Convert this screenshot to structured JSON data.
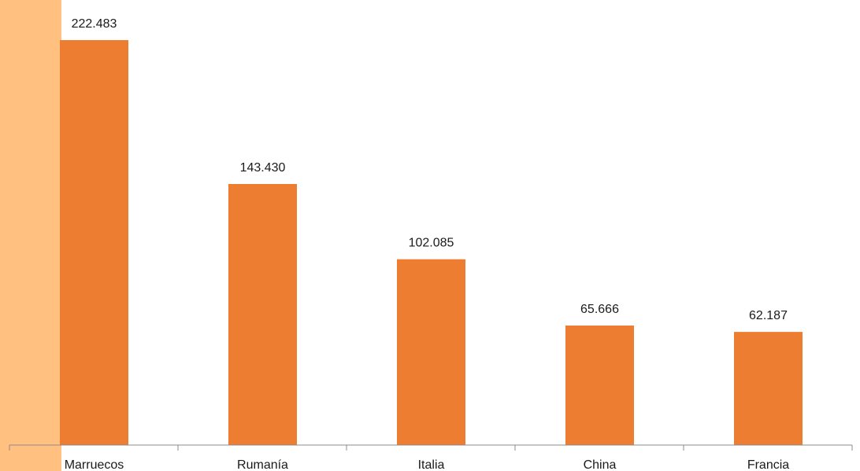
{
  "chart_data": {
    "type": "bar",
    "categories": [
      "Marruecos",
      "Rumanía",
      "Italia",
      "China",
      "Francia"
    ],
    "values": [
      222483,
      143430,
      102085,
      65666,
      62187
    ],
    "data_labels": [
      "222.483",
      "143.430",
      "102.085",
      "65.666",
      "62.187"
    ],
    "title": "",
    "xlabel": "",
    "ylabel": "",
    "ylim": [
      0,
      240000
    ],
    "grid": false,
    "legend": "none"
  },
  "colors": {
    "bar": "#ED7D31",
    "side_highlight": "#FFC080",
    "axis": "#8c8c8c",
    "text": "#1a1a1a"
  }
}
